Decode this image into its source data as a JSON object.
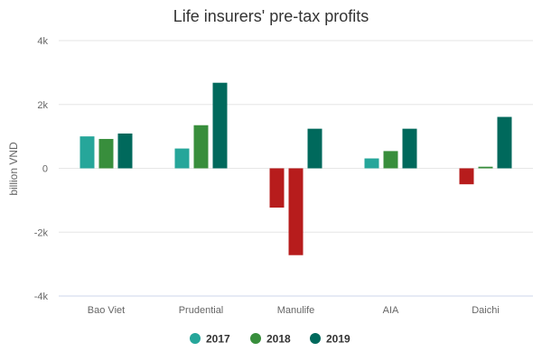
{
  "chart_data": {
    "type": "bar",
    "title": "Life insurers' pre-tax profits",
    "ylabel": "billion VND",
    "xlabel": "",
    "categories": [
      "Bao Viet",
      "Prudential",
      "Manulife",
      "AIA",
      "Daichi"
    ],
    "ylim": [
      -4000,
      4000
    ],
    "yticks": [
      4000,
      2000,
      0,
      -2000,
      -4000
    ],
    "ytick_labels": [
      "4k",
      "2k",
      "0",
      "-2k",
      "-4k"
    ],
    "grid": true,
    "legend_position": "bottom-center",
    "negative_color": "#b71c1c",
    "series": [
      {
        "name": "2017",
        "color": "#26a69a",
        "values": [
          1000,
          620,
          -1230,
          310,
          -500
        ]
      },
      {
        "name": "2018",
        "color": "#388e3c",
        "values": [
          920,
          1350,
          -2720,
          540,
          50
        ]
      },
      {
        "name": "2019",
        "color": "#00695c",
        "values": [
          1090,
          2680,
          1240,
          1240,
          1610
        ]
      }
    ]
  }
}
